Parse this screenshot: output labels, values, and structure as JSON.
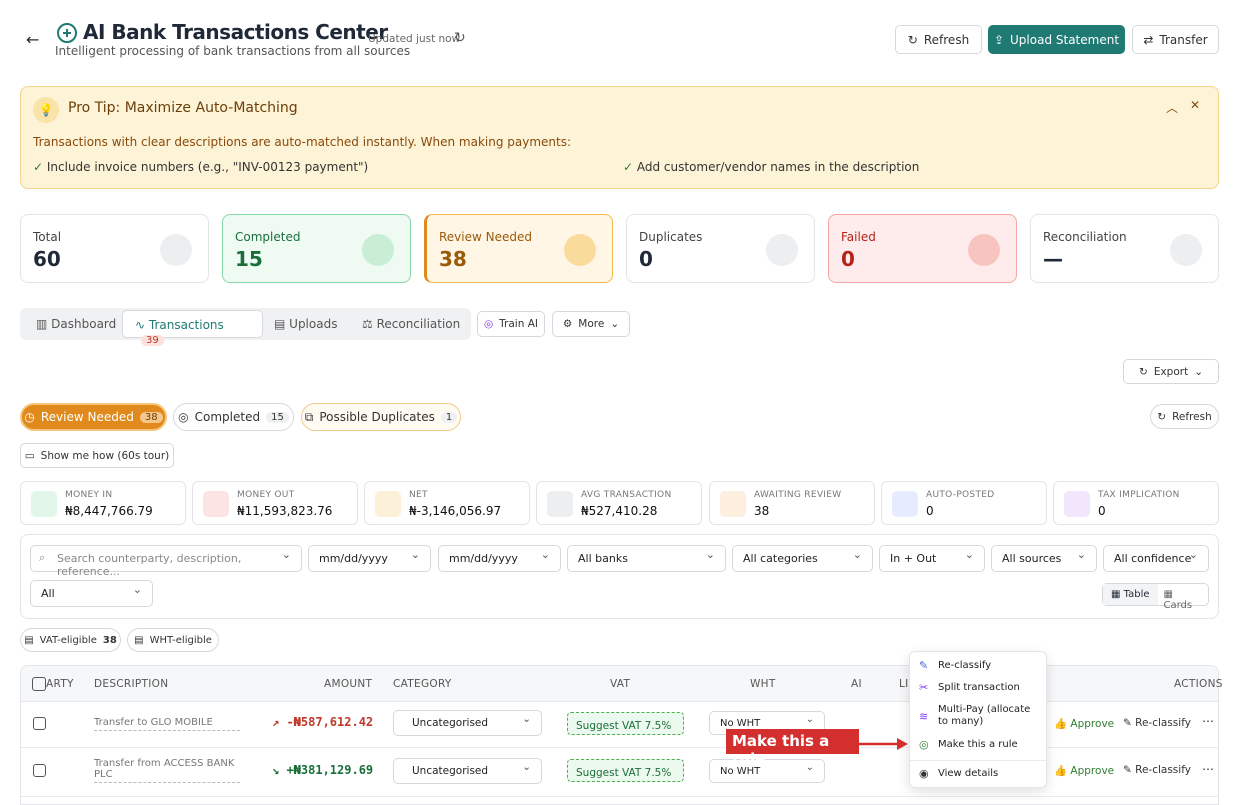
{
  "header": {
    "title": "AI Bank Transactions Center",
    "subtitle": "Intelligent processing of bank transactions from all sources",
    "updated": "Updated just now",
    "buttons": [
      "Refresh",
      "Upload Statement",
      "Transfer"
    ]
  },
  "tip": {
    "title": "Pro Tip: Maximize Auto-Matching",
    "text": "Transactions with clear descriptions are auto-matched instantly. When making payments:",
    "items": [
      "Include invoice numbers (e.g., \"INV-00123 payment\")",
      "Add customer/vendor names in the description"
    ]
  },
  "stats": [
    {
      "label": "Total",
      "value": 60
    },
    {
      "label": "Completed",
      "value": 15
    },
    {
      "label": "Review Needed",
      "value": 38
    },
    {
      "label": "Duplicates",
      "value": 0
    },
    {
      "label": "Failed",
      "value": 0
    },
    {
      "label": "Reconciliation",
      "value": "—"
    }
  ],
  "tabs": [
    {
      "label": "Dashboard"
    },
    {
      "label": "Transactions",
      "badge": 39
    },
    {
      "label": "Uploads"
    },
    {
      "label": "Reconciliation"
    }
  ],
  "tab_actions": [
    "Train AI",
    "More"
  ],
  "export": "Export",
  "status_filters": [
    {
      "label": "Review Needed",
      "count": 38
    },
    {
      "label": "Completed",
      "count": 15
    },
    {
      "label": "Possible Duplicates",
      "count": 1
    }
  ],
  "status_refresh": "Refresh",
  "tour": "Show me how (60s tour)",
  "metrics": [
    {
      "label": "MONEY IN",
      "value": "₦8,447,766.79"
    },
    {
      "label": "MONEY OUT",
      "value": "₦11,593,823.76"
    },
    {
      "label": "NET",
      "value": "₦-3,146,056.97"
    },
    {
      "label": "AVG TRANSACTION",
      "value": "₦527,410.28"
    },
    {
      "label": "AWAITING REVIEW",
      "value": 38
    },
    {
      "label": "AUTO-POSTED",
      "value": 0
    },
    {
      "label": "TAX IMPLICATION",
      "value": 0
    }
  ],
  "filters": {
    "search": "Search counterparty, description, reference...",
    "dates": [
      "mm/dd/yyyy",
      "mm/dd/yyyy"
    ],
    "selects": [
      "All banks",
      "All categories",
      "In + Out",
      "All sources",
      "All confidence",
      "All"
    ],
    "views": [
      "Table",
      "Cards"
    ]
  },
  "chips": [
    {
      "label": "VAT-eligible",
      "count": 38
    },
    {
      "label": "WHT-eligible"
    }
  ],
  "table": {
    "headers": [
      "ARTY",
      "DESCRIPTION",
      "AMOUNT",
      "CATEGORY",
      "VAT",
      "WHT",
      "AI",
      "LI",
      "ACTIONS"
    ],
    "rows": [
      {
        "description": "Transfer to GLO MOBILE",
        "amount": "-₦587,612.42",
        "category": "Uncategorised",
        "vat": "Suggest VAT 7.5%",
        "wht": "No WHT",
        "approve": "Approve",
        "reclassify": "Re-classify"
      },
      {
        "description": "Transfer from ACCESS BANK PLC",
        "amount": "+₦381,129.69",
        "category": "Uncategorised",
        "vat": "Suggest VAT 7.5%",
        "wht": "No WHT",
        "approve": "Approve",
        "reclassify": "Re-classify"
      }
    ]
  },
  "menu": [
    "Re-classify",
    "Split transaction",
    "Multi-Pay (allocate to many)",
    "Make this a rule",
    "View details"
  ],
  "annotation": "Make this a rule"
}
